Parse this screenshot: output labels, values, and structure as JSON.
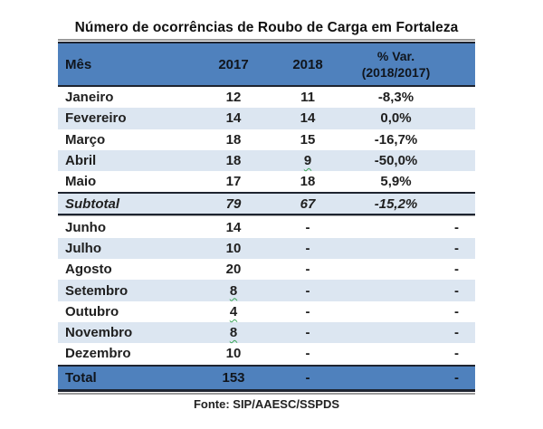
{
  "title": "Número de ocorrências de Roubo de Carga em Fortaleza",
  "source": "Fonte: SIP/AAESC/SSPDS",
  "header": {
    "col_month": "Mês",
    "col_2017": "2017",
    "col_2018": "2018",
    "col_var_line1": "% Var.",
    "col_var_line2": "(2018/2017)"
  },
  "colors": {
    "header_blue": "#4f81bd",
    "shade_blue": "#dce6f1",
    "border_dark": "#1e2430",
    "border_gray": "#9b9b9b",
    "squiggle_green": "#3aa557"
  },
  "rows": [
    {
      "month": "Janeiro",
      "y2017": "12",
      "y2018": "11",
      "var": "-8,3%",
      "shade": false
    },
    {
      "month": "Fevereiro",
      "y2017": "14",
      "y2018": "14",
      "var": "0,0%",
      "shade": true
    },
    {
      "month": "Março",
      "y2017": "18",
      "y2018": "15",
      "var": "-16,7%",
      "shade": false
    },
    {
      "month": "Abril",
      "y2017": "18",
      "y2018": "9",
      "var": "-50,0%",
      "shade": true,
      "squiggle_2018": true
    },
    {
      "month": "Maio",
      "y2017": "17",
      "y2018": "18",
      "var": "5,9%",
      "shade": false
    },
    {
      "month": "Subtotal",
      "y2017": "79",
      "y2018": "67",
      "var": "-15,2%",
      "shade": true,
      "style": "subtotal"
    },
    {
      "month": "Junho",
      "y2017": "14",
      "y2018": "-",
      "var": "-",
      "shade": false,
      "var_align": "right"
    },
    {
      "month": "Julho",
      "y2017": "10",
      "y2018": "-",
      "var": "-",
      "shade": true,
      "var_align": "right"
    },
    {
      "month": "Agosto",
      "y2017": "20",
      "y2018": "-",
      "var": "-",
      "shade": false,
      "var_align": "right"
    },
    {
      "month": "Setembro",
      "y2017": "8",
      "y2018": "-",
      "var": "-",
      "shade": true,
      "squiggle_2017": true,
      "var_align": "right"
    },
    {
      "month": "Outubro",
      "y2017": "4",
      "y2018": "-",
      "var": "-",
      "shade": false,
      "squiggle_2017": true,
      "var_align": "right"
    },
    {
      "month": "Novembro",
      "y2017": "8",
      "y2018": "-",
      "var": "-",
      "shade": true,
      "squiggle_2017": true,
      "var_align": "right"
    },
    {
      "month": "Dezembro",
      "y2017": "10",
      "y2018": "-",
      "var": "-",
      "shade": false,
      "var_align": "right"
    },
    {
      "month": "Total",
      "y2017": "153",
      "y2018": "-",
      "var": "-",
      "shade": false,
      "style": "total",
      "var_align": "right"
    }
  ]
}
